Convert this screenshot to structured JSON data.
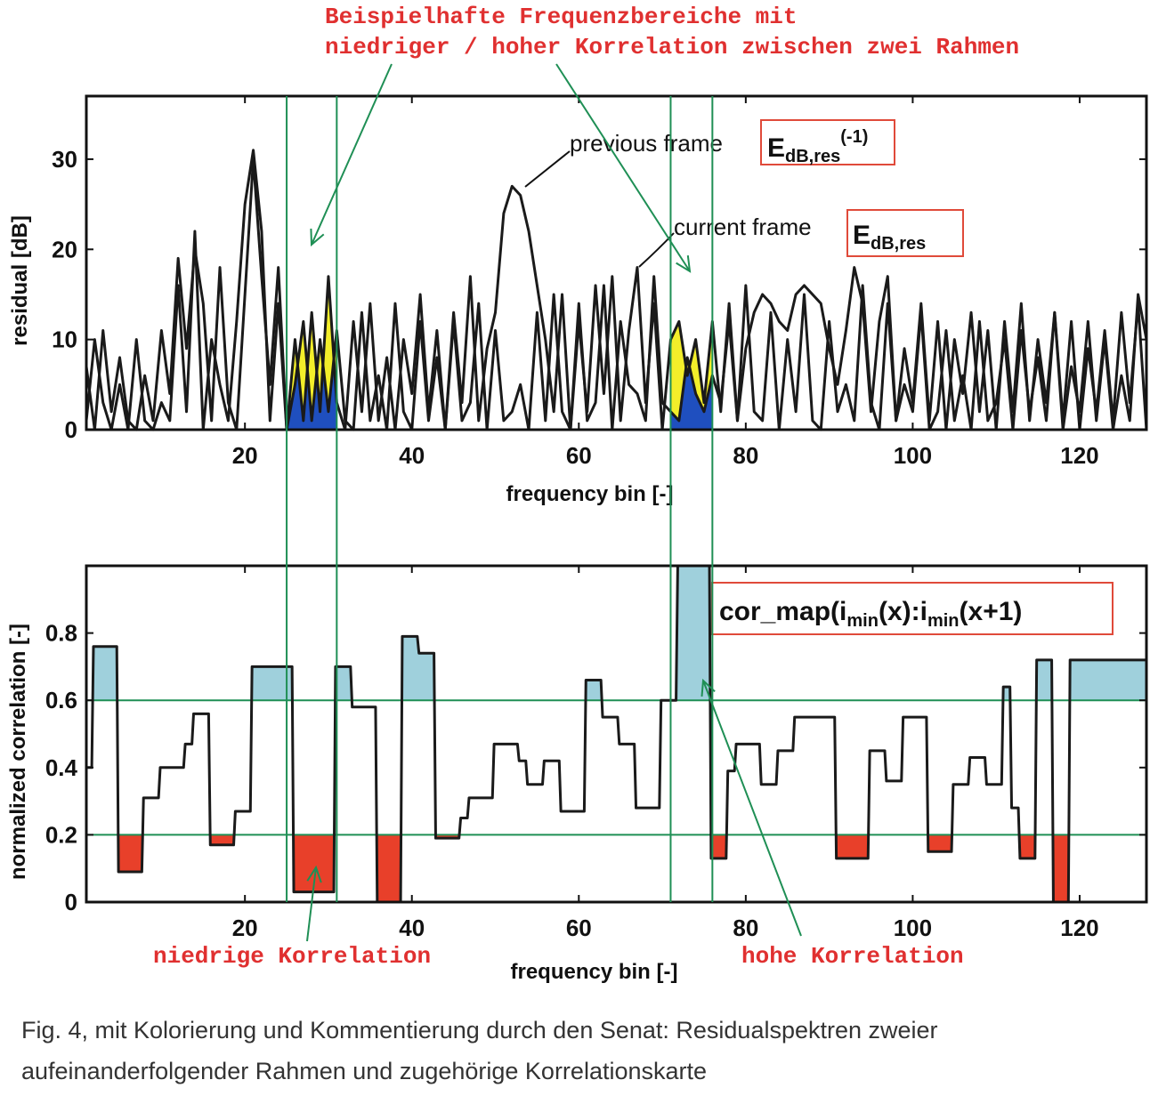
{
  "annotations": {
    "top_line1": "Beispielhafte Frequenzbereiche mit",
    "top_line2": "niedriger / hoher Korrelation zwischen zwei Rahmen",
    "low_corr": "niedrige Korrelation",
    "high_corr": "hohe Korrelation"
  },
  "caption": {
    "line1": "Fig. 4, mit Kolorierung und Kommentierung durch den Senat: Residualspektren zweier",
    "line2": "aufeinanderfolgender Rahmen und zugehörige Korrelationskarte"
  },
  "colors": {
    "curve": "#1a1a1a",
    "guide": "#1f8f55",
    "yellow": "#f3ee2a",
    "blue": "#1f4fbf",
    "red": "#e8402a",
    "lightblue": "#9fd0dc",
    "label_box": "#e04a3a"
  },
  "chart_data": [
    {
      "type": "line",
      "xlabel": "frequency bin [-]",
      "ylabel": "residual [dB]",
      "xlim": [
        1,
        128
      ],
      "ylim": [
        0,
        37
      ],
      "xticks": [
        20,
        40,
        60,
        80,
        100,
        120
      ],
      "yticks": [
        0,
        10,
        20,
        30
      ],
      "legend_previous": "previous frame",
      "legend_current": "current frame",
      "label_previous": {
        "main": "E",
        "sub": "dB,res",
        "sup": "(-1)"
      },
      "label_current": {
        "main": "E",
        "sub": "dB,res"
      },
      "highlight_ranges": [
        [
          25,
          31
        ],
        [
          71,
          76
        ]
      ],
      "series": [
        {
          "x": [
            1,
            2,
            3,
            4,
            5,
            6,
            7,
            8,
            9,
            10,
            11,
            12,
            13,
            14,
            15,
            16,
            17,
            18,
            19,
            20,
            21,
            22,
            23,
            24,
            25,
            26,
            27,
            28,
            29,
            30,
            31,
            32,
            33,
            34,
            35,
            36,
            37,
            38,
            39,
            40,
            41,
            42,
            43,
            44,
            45,
            46,
            47,
            48,
            49,
            50,
            51,
            52,
            53,
            54,
            55,
            56,
            57,
            58,
            59,
            60,
            61,
            62,
            63,
            64,
            65,
            66,
            67,
            68,
            69,
            70,
            71,
            72,
            73,
            74,
            75,
            76,
            77,
            78,
            79,
            80,
            81,
            82,
            83,
            84,
            85,
            86,
            87,
            88,
            89,
            90,
            91,
            92,
            93,
            94,
            95,
            96,
            97,
            98,
            99,
            100,
            101,
            102,
            103,
            104,
            105,
            106,
            107,
            108,
            109,
            110,
            111,
            112,
            113,
            114,
            115,
            116,
            117,
            118,
            119,
            120,
            121,
            122,
            123,
            124,
            125,
            126,
            127,
            128
          ],
          "y": [
            7,
            0,
            11,
            2,
            8,
            1,
            0,
            6,
            1,
            11,
            4,
            19,
            9,
            20,
            14,
            1,
            18,
            3,
            0,
            15,
            30,
            17,
            5,
            18,
            0,
            10,
            1,
            13,
            2,
            17,
            3,
            0,
            12,
            2,
            14,
            1,
            8,
            0,
            10,
            4,
            15,
            2,
            11,
            0,
            13,
            3,
            17,
            1,
            9,
            13,
            24,
            27,
            26,
            22,
            16,
            10,
            2,
            15,
            0,
            12,
            2,
            16,
            4,
            17,
            1,
            11,
            18,
            3,
            14,
            0,
            10,
            12,
            6,
            10,
            3,
            12,
            2,
            14,
            1,
            9,
            13,
            15,
            14,
            12,
            11,
            15,
            16,
            15,
            14,
            9,
            5,
            11,
            18,
            14,
            2,
            12,
            17,
            1,
            9,
            3,
            14,
            1,
            12,
            0,
            10,
            4,
            13,
            2,
            11,
            0,
            12,
            2,
            14,
            1,
            10,
            3,
            13,
            1,
            12,
            0,
            9,
            2,
            11,
            1,
            13,
            3,
            14,
            0
          ]
        },
        {
          "x": [
            1,
            2,
            3,
            4,
            5,
            6,
            7,
            8,
            9,
            10,
            11,
            12,
            13,
            14,
            15,
            16,
            17,
            18,
            19,
            20,
            21,
            22,
            23,
            24,
            25,
            26,
            27,
            28,
            29,
            30,
            31,
            32,
            33,
            34,
            35,
            36,
            37,
            38,
            39,
            40,
            41,
            42,
            43,
            44,
            45,
            46,
            47,
            48,
            49,
            50,
            51,
            52,
            53,
            54,
            55,
            56,
            57,
            58,
            59,
            60,
            61,
            62,
            63,
            64,
            65,
            66,
            67,
            68,
            69,
            70,
            71,
            72,
            73,
            74,
            75,
            76,
            77,
            78,
            79,
            80,
            81,
            82,
            83,
            84,
            85,
            86,
            87,
            88,
            89,
            90,
            91,
            92,
            93,
            94,
            95,
            96,
            97,
            98,
            99,
            100,
            101,
            102,
            103,
            104,
            105,
            106,
            107,
            108,
            109,
            110,
            111,
            112,
            113,
            114,
            115,
            116,
            117,
            118,
            119,
            120,
            121,
            122,
            123,
            124,
            125,
            126,
            127,
            128
          ],
          "y": [
            1,
            10,
            3,
            0,
            5,
            0,
            10,
            1,
            0,
            3,
            1,
            16,
            2,
            22,
            0,
            10,
            5,
            1,
            12,
            25,
            31,
            22,
            1,
            14,
            0,
            5,
            12,
            1,
            10,
            2,
            11,
            1,
            0,
            13,
            1,
            6,
            0,
            14,
            2,
            0,
            12,
            1,
            8,
            0,
            12,
            1,
            3,
            14,
            0,
            11,
            1,
            2,
            5,
            0,
            13,
            1,
            15,
            2,
            0,
            14,
            1,
            3,
            16,
            0,
            12,
            5,
            4,
            1,
            17,
            3,
            2,
            1,
            8,
            4,
            2,
            6,
            3,
            12,
            1,
            16,
            2,
            1,
            13,
            0,
            10,
            2,
            15,
            1,
            0,
            12,
            2,
            5,
            1,
            16,
            3,
            0,
            14,
            1,
            5,
            2,
            13,
            0,
            2,
            11,
            1,
            6,
            0,
            12,
            1,
            3,
            10,
            0,
            11,
            2,
            8,
            1,
            13,
            0,
            7,
            2,
            12,
            1,
            10,
            0,
            6,
            1,
            15,
            10
          ]
        }
      ]
    },
    {
      "type": "line",
      "xlabel": "frequency bin [-]",
      "ylabel": "normalized correlation [-]",
      "xlim": [
        1,
        128
      ],
      "ylim": [
        0,
        1
      ],
      "xticks": [
        20,
        40,
        60,
        80,
        100,
        120
      ],
      "yticks": [
        0,
        0.2,
        0.4,
        0.6,
        0.8
      ],
      "thresholds": [
        0.2,
        0.6
      ],
      "series_label": {
        "a": "cor_map(i",
        "sub1": "min",
        "b": "(x):i",
        "sub2": "min",
        "c": "(x+1)"
      },
      "series": [
        {
          "x": [
            1,
            2,
            3,
            4,
            5,
            6,
            7,
            8,
            9,
            10,
            11,
            12,
            13,
            14,
            15,
            16,
            17,
            18,
            19,
            20,
            21,
            22,
            23,
            24,
            25,
            26,
            27,
            28,
            29,
            30,
            31,
            32,
            33,
            34,
            35,
            36,
            37,
            38,
            39,
            40,
            41,
            42,
            43,
            44,
            45,
            46,
            47,
            48,
            49,
            50,
            51,
            52,
            53,
            54,
            55,
            56,
            57,
            58,
            59,
            60,
            61,
            62,
            63,
            64,
            65,
            66,
            67,
            68,
            69,
            70,
            71,
            72,
            73,
            74,
            75,
            76,
            77,
            78,
            79,
            80,
            81,
            82,
            83,
            84,
            85,
            86,
            87,
            88,
            89,
            90,
            91,
            92,
            93,
            94,
            95,
            96,
            97,
            98,
            99,
            100,
            101,
            102,
            103,
            104,
            105,
            106,
            107,
            108,
            109,
            110,
            111,
            112,
            113,
            114,
            115,
            116,
            117,
            118,
            119,
            120,
            121,
            122,
            123,
            124,
            125,
            126,
            127,
            128
          ],
          "y": [
            0.4,
            0.76,
            0.76,
            0.76,
            0.09,
            0.09,
            0.09,
            0.31,
            0.31,
            0.4,
            0.4,
            0.4,
            0.47,
            0.56,
            0.56,
            0.17,
            0.17,
            0.17,
            0.27,
            0.27,
            0.7,
            0.7,
            0.7,
            0.7,
            0.7,
            0.03,
            0.03,
            0.03,
            0.03,
            0.03,
            0.7,
            0.7,
            0.58,
            0.58,
            0.58,
            0.0,
            0.0,
            0.0,
            0.79,
            0.79,
            0.74,
            0.74,
            0.19,
            0.19,
            0.19,
            0.25,
            0.31,
            0.31,
            0.31,
            0.47,
            0.47,
            0.47,
            0.42,
            0.35,
            0.35,
            0.42,
            0.42,
            0.27,
            0.27,
            0.27,
            0.66,
            0.66,
            0.55,
            0.55,
            0.47,
            0.47,
            0.28,
            0.28,
            0.28,
            0.6,
            0.6,
            1.0,
            1.0,
            1.0,
            1.0,
            0.13,
            0.13,
            0.39,
            0.47,
            0.47,
            0.47,
            0.35,
            0.35,
            0.45,
            0.45,
            0.55,
            0.55,
            0.55,
            0.55,
            0.55,
            0.13,
            0.13,
            0.13,
            0.13,
            0.45,
            0.45,
            0.36,
            0.36,
            0.55,
            0.55,
            0.55,
            0.15,
            0.15,
            0.15,
            0.35,
            0.35,
            0.43,
            0.43,
            0.35,
            0.35,
            0.64,
            0.28,
            0.13,
            0.13,
            0.72,
            0.72,
            0.0,
            0.0,
            0.72,
            0.72,
            0.72,
            0.72,
            0.72,
            0.72,
            0.72,
            0.72,
            0.72,
            0.72
          ]
        }
      ]
    }
  ]
}
